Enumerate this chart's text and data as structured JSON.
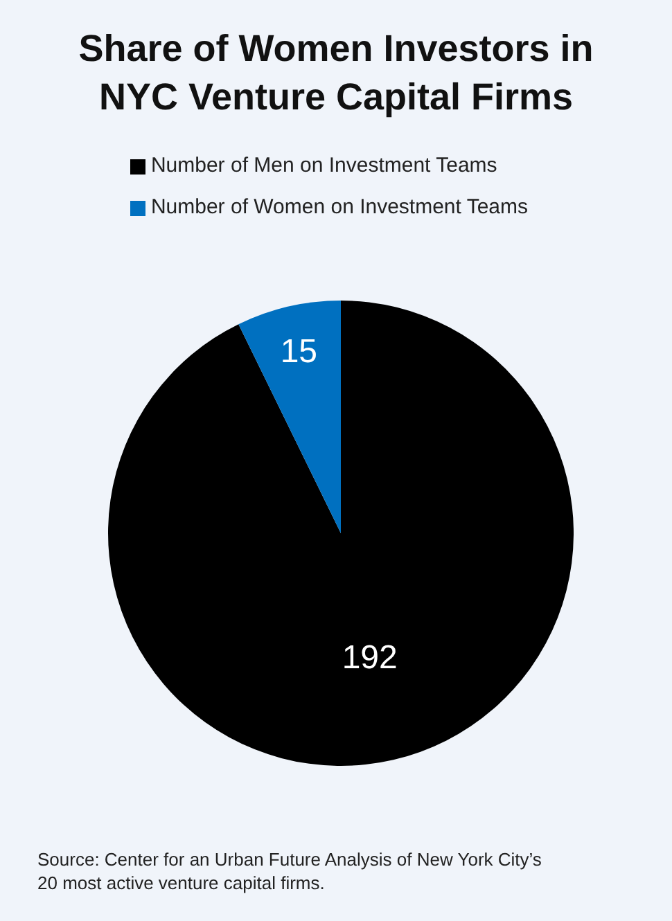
{
  "chart_data": {
    "type": "pie",
    "title": "Share of Women Investors in NYC Venture Capital Firms",
    "categories": [
      "Number of Men on Investment Teams",
      "Number of Women on Investment Teams"
    ],
    "values": [
      192,
      15
    ],
    "colors": [
      "#000000",
      "#0070c0"
    ],
    "data_labels": true,
    "legend": "top",
    "annotations": [
      "Source: Center for an Urban Future Analysis of New York City’s 20 most active venture capital firms."
    ]
  }
}
